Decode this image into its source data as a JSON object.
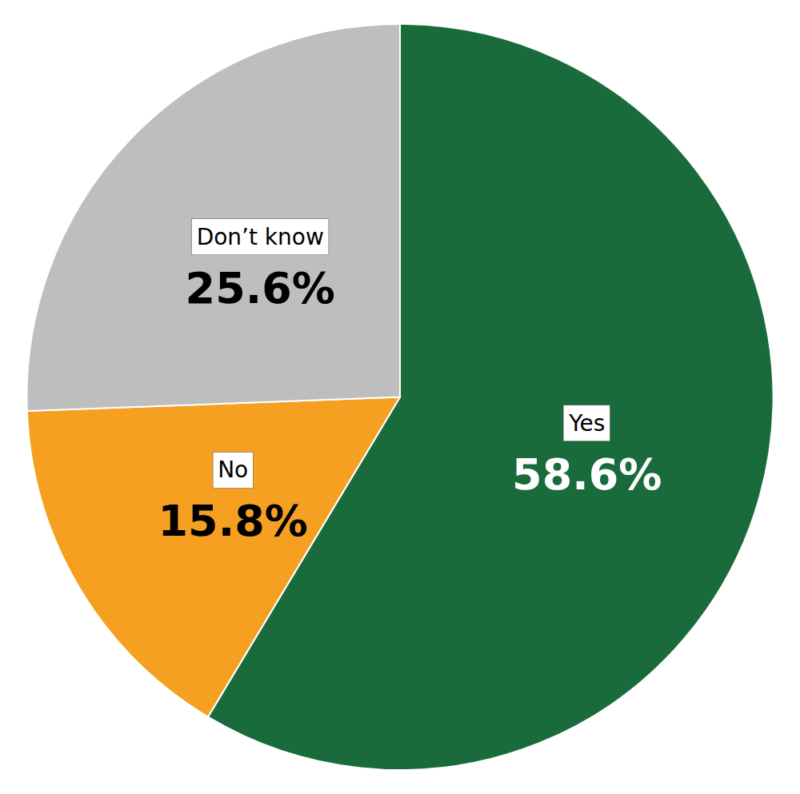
{
  "chart_data": {
    "type": "pie",
    "categories": [
      "Yes",
      "No",
      "Don’t know"
    ],
    "values": [
      58.6,
      15.8,
      25.6
    ],
    "value_labels": [
      "58.6%",
      "15.8%",
      "25.6%"
    ],
    "colors": [
      "#1a6b3c",
      "#f5a020",
      "#bebebe"
    ],
    "data_labels": true
  }
}
